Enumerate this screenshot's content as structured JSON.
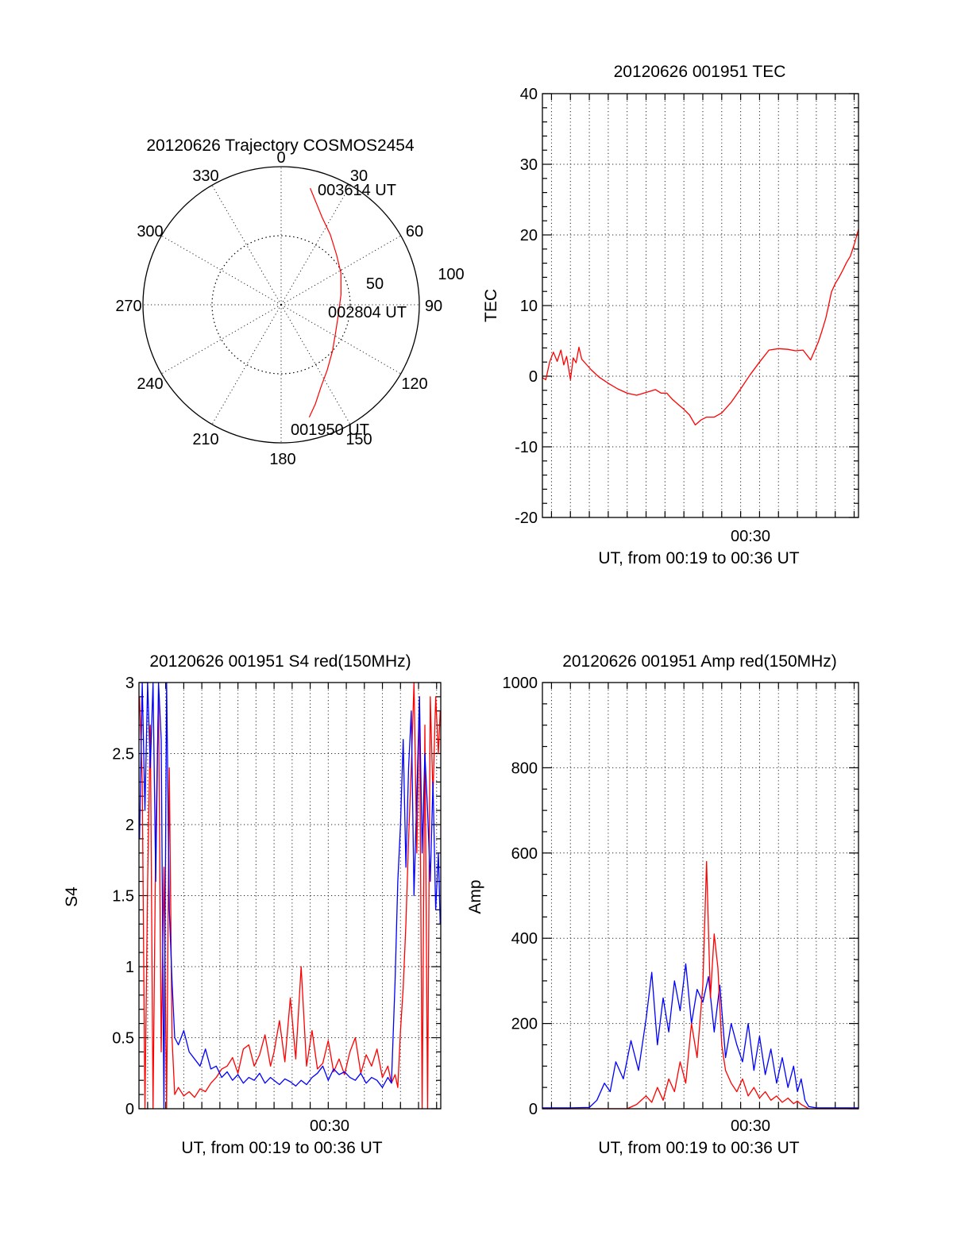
{
  "colors": {
    "red": "#ff0000",
    "blue": "#0000ff",
    "axis": "#000000"
  },
  "chart_data": [
    {
      "type": "polar-trajectory",
      "title": "20120626 Trajectory COSMOS2454",
      "angle_labels": [
        "0",
        "30",
        "60",
        "90",
        "120",
        "150",
        "180",
        "210",
        "240",
        "270",
        "300",
        "330"
      ],
      "radius_labels": [
        "50",
        "100"
      ],
      "rlim": [
        0,
        100
      ],
      "grid": true,
      "series": [
        {
          "color": "#ff0000",
          "points": [
            {
              "az": 14,
              "r": 87
            },
            {
              "az": 19,
              "r": 78
            },
            {
              "az": 25,
              "r": 70
            },
            {
              "az": 35,
              "r": 62
            },
            {
              "az": 48,
              "r": 54
            },
            {
              "az": 62,
              "r": 49
            },
            {
              "az": 80,
              "r": 44
            },
            {
              "az": 98,
              "r": 42
            },
            {
              "az": 116,
              "r": 44
            },
            {
              "az": 132,
              "r": 50
            },
            {
              "az": 145,
              "r": 58
            },
            {
              "az": 154,
              "r": 66
            },
            {
              "az": 161,
              "r": 76
            },
            {
              "az": 166,
              "r": 84
            }
          ]
        }
      ],
      "annotations": [
        "003614 UT",
        "002804 UT",
        "001950 UT"
      ]
    },
    {
      "type": "line",
      "title": "20120626 001951 TEC",
      "ylabel": "TEC",
      "xlabel": "UT, from 00:19 to 00:36 UT",
      "xtick_label": "00:30",
      "x_unit": "minutes UT",
      "xlim": [
        19.52,
        36.23
      ],
      "xtick_value": 30,
      "ylim": [
        -20,
        40
      ],
      "yticks": [
        "-20",
        "-10",
        "0",
        "10",
        "20",
        "30",
        "40"
      ],
      "grid": true,
      "series": [
        {
          "color": "#ff0000",
          "x": [
            19.52,
            19.7,
            19.9,
            20.1,
            20.3,
            20.5,
            20.65,
            20.8,
            21.0,
            21.15,
            21.3,
            21.45,
            21.6,
            21.8,
            22.1,
            22.5,
            23.0,
            23.5,
            24.0,
            24.5,
            25.0,
            25.5,
            25.8,
            26.1,
            26.4,
            26.7,
            27.0,
            27.3,
            27.6,
            27.9,
            28.2,
            28.6,
            29.0,
            29.5,
            30.0,
            30.5,
            31.0,
            31.5,
            32.0,
            32.5,
            32.9,
            33.3,
            33.7,
            34.1,
            34.3,
            34.5,
            34.6,
            34.8,
            35.0,
            35.2,
            35.4,
            35.6,
            35.8,
            36.0,
            36.23
          ],
          "y": [
            -0.2,
            -0.5,
            2.0,
            3.4,
            2.1,
            3.7,
            1.6,
            2.8,
            -0.5,
            2.6,
            1.9,
            4.1,
            2.4,
            1.8,
            0.9,
            -0.1,
            -1.0,
            -1.8,
            -2.4,
            -2.7,
            -2.3,
            -1.9,
            -2.4,
            -2.4,
            -3.3,
            -4.0,
            -4.7,
            -5.5,
            -6.9,
            -6.2,
            -5.8,
            -5.8,
            -5.2,
            -3.7,
            -1.8,
            0.2,
            2.0,
            3.7,
            3.9,
            3.8,
            3.6,
            3.7,
            2.3,
            4.8,
            6.4,
            8.2,
            9.4,
            11.9,
            13.1,
            14.0,
            15.0,
            16.1,
            17.0,
            18.6,
            20.8
          ]
        }
      ]
    },
    {
      "type": "line",
      "title": "20120626 001951 S4 red(150MHz)",
      "ylabel": "S4",
      "xlabel": "UT, from 00:19 to 00:36 UT",
      "xtick_label": "00:30",
      "x_unit": "minutes UT",
      "xlim": [
        19.52,
        36.23
      ],
      "xtick_value": 30,
      "ylim": [
        0,
        3
      ],
      "yticks": [
        "0",
        "0.5",
        "1",
        "1.5",
        "2",
        "2.5",
        "3"
      ],
      "grid": true,
      "series": [
        {
          "color": "#ff0000",
          "x": [
            19.55,
            19.7,
            19.85,
            20.0,
            20.15,
            20.3,
            20.45,
            20.6,
            20.75,
            20.9,
            21.05,
            21.2,
            21.35,
            21.5,
            21.7,
            22.0,
            22.3,
            22.6,
            22.9,
            23.2,
            23.5,
            23.8,
            24.1,
            24.4,
            24.7,
            25.0,
            25.3,
            25.6,
            25.9,
            26.2,
            26.5,
            26.8,
            27.0,
            27.3,
            27.6,
            27.9,
            28.2,
            28.5,
            28.8,
            29.1,
            29.4,
            29.7,
            30.0,
            30.3,
            30.6,
            30.9,
            31.2,
            31.5,
            31.8,
            32.1,
            32.4,
            32.7,
            33.0,
            33.3,
            33.5,
            33.7,
            33.85,
            34.0,
            34.15,
            34.3,
            34.45,
            34.6,
            34.75,
            34.9,
            35.05,
            35.2,
            35.35,
            35.5,
            35.65,
            35.8,
            35.95,
            36.1,
            36.2
          ],
          "y": [
            2.9,
            2.3,
            0.0,
            1.6,
            2.7,
            0.0,
            1.9,
            2.9,
            0.4,
            1.7,
            0.0,
            2.4,
            0.5,
            0.1,
            0.15,
            0.09,
            0.12,
            0.08,
            0.14,
            0.12,
            0.18,
            0.22,
            0.28,
            0.3,
            0.36,
            0.25,
            0.42,
            0.45,
            0.3,
            0.38,
            0.52,
            0.3,
            0.4,
            0.62,
            0.33,
            0.78,
            0.35,
            1.0,
            0.3,
            0.55,
            0.28,
            0.32,
            0.48,
            0.26,
            0.35,
            0.24,
            0.4,
            0.5,
            0.25,
            0.38,
            0.3,
            0.42,
            0.22,
            0.3,
            0.18,
            0.24,
            0.15,
            0.55,
            0.85,
            1.3,
            1.9,
            2.4,
            3.0,
            1.8,
            2.9,
            0.0,
            2.7,
            0.0,
            2.9,
            2.2,
            2.9,
            2.5,
            2.8
          ]
        },
        {
          "color": "#0000ff",
          "x": [
            19.55,
            19.7,
            19.85,
            20.0,
            20.15,
            20.3,
            20.45,
            20.6,
            20.75,
            20.9,
            21.05,
            21.2,
            21.35,
            21.5,
            21.7,
            22.0,
            22.3,
            22.6,
            22.9,
            23.2,
            23.5,
            23.8,
            24.1,
            24.4,
            24.7,
            25.0,
            25.3,
            25.6,
            25.9,
            26.2,
            26.5,
            26.8,
            27.0,
            27.3,
            27.6,
            27.9,
            28.2,
            28.5,
            28.8,
            29.1,
            29.4,
            29.7,
            30.0,
            30.3,
            30.6,
            30.9,
            31.2,
            31.5,
            31.8,
            32.1,
            32.4,
            32.7,
            33.0,
            33.3,
            33.5,
            33.7,
            33.85,
            34.0,
            34.15,
            34.3,
            34.45,
            34.6,
            34.75,
            34.9,
            35.05,
            35.2,
            35.35,
            35.5,
            35.65,
            35.8,
            35.95,
            36.1,
            36.2
          ],
          "y": [
            1.9,
            3.0,
            2.1,
            3.0,
            2.4,
            3.0,
            1.6,
            3.0,
            2.6,
            0.0,
            3.0,
            1.4,
            0.9,
            0.5,
            0.45,
            0.55,
            0.4,
            0.35,
            0.3,
            0.42,
            0.28,
            0.3,
            0.22,
            0.26,
            0.2,
            0.24,
            0.18,
            0.22,
            0.2,
            0.25,
            0.18,
            0.22,
            0.2,
            0.17,
            0.21,
            0.19,
            0.16,
            0.2,
            0.17,
            0.22,
            0.25,
            0.3,
            0.2,
            0.28,
            0.24,
            0.26,
            0.22,
            0.2,
            0.25,
            0.18,
            0.22,
            0.2,
            0.15,
            0.22,
            0.18,
            0.9,
            1.6,
            2.0,
            2.6,
            1.7,
            2.4,
            2.8,
            1.5,
            2.2,
            2.9,
            1.8,
            2.5,
            2.1,
            1.6,
            2.3,
            1.4,
            1.8,
            1.3
          ]
        }
      ]
    },
    {
      "type": "line",
      "title": "20120626 001951 Amp red(150MHz)",
      "ylabel": "Amp",
      "xlabel": "UT, from 00:19 to 00:36 UT",
      "xtick_label": "00:30",
      "x_unit": "minutes UT",
      "xlim": [
        19.52,
        36.23
      ],
      "xtick_value": 30,
      "ylim": [
        0,
        1000
      ],
      "yticks": [
        "0",
        "200",
        "400",
        "600",
        "800",
        "1000"
      ],
      "grid": true,
      "series": [
        {
          "color": "#0000ff",
          "x": [
            19.52,
            21.0,
            22.0,
            22.4,
            22.8,
            23.1,
            23.4,
            23.8,
            24.2,
            24.6,
            25.0,
            25.3,
            25.6,
            25.9,
            26.2,
            26.5,
            26.8,
            27.1,
            27.4,
            27.7,
            28.0,
            28.3,
            28.6,
            28.9,
            29.2,
            29.5,
            29.8,
            30.1,
            30.4,
            30.7,
            31.0,
            31.3,
            31.6,
            31.9,
            32.2,
            32.5,
            32.8,
            33.0,
            33.2,
            33.4,
            33.6,
            34.0,
            35.0,
            36.23
          ],
          "y": [
            2,
            2,
            3,
            20,
            60,
            40,
            110,
            70,
            160,
            90,
            210,
            320,
            150,
            260,
            180,
            300,
            230,
            340,
            200,
            280,
            250,
            310,
            180,
            290,
            120,
            200,
            150,
            110,
            200,
            90,
            170,
            80,
            140,
            60,
            120,
            50,
            100,
            40,
            70,
            20,
            5,
            2,
            2,
            2
          ]
        },
        {
          "color": "#ff0000",
          "x": [
            19.52,
            24.0,
            24.5,
            25.0,
            25.3,
            25.6,
            25.9,
            26.2,
            26.5,
            26.8,
            27.1,
            27.4,
            27.7,
            28.0,
            28.2,
            28.4,
            28.6,
            28.8,
            29.0,
            29.2,
            29.5,
            29.8,
            30.1,
            30.4,
            30.7,
            31.0,
            31.3,
            31.6,
            31.9,
            32.2,
            32.5,
            32.8,
            33.0,
            33.2,
            33.4,
            33.6,
            34.0,
            36.23
          ],
          "y": [
            0,
            0,
            10,
            30,
            15,
            50,
            20,
            70,
            40,
            110,
            60,
            200,
            120,
            290,
            580,
            260,
            410,
            330,
            150,
            90,
            60,
            40,
            70,
            30,
            50,
            25,
            40,
            20,
            30,
            15,
            25,
            12,
            18,
            10,
            5,
            0,
            0,
            0
          ]
        }
      ]
    }
  ]
}
